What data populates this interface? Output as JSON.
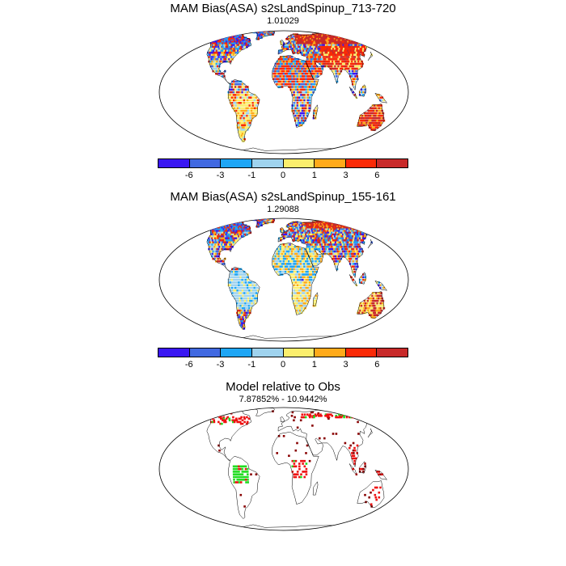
{
  "panels": [
    {
      "title": "MAM Bias(ASA) s2sLandSpinup_713-720",
      "subtitle": "1.01029",
      "legend_colors": [
        "#3a17f2",
        "#4169e1",
        "#1ea6f5",
        "#9fd3ee",
        "#fbee6d",
        "#ffaa1a",
        "#fa2a07",
        "#c82a2a"
      ],
      "legend_labels": [
        "-6",
        "-3",
        "-1",
        "0",
        "1",
        "3",
        "6"
      ]
    },
    {
      "title": "MAM Bias(ASA) s2sLandSpinup_155-161",
      "subtitle": "1.29088",
      "legend_colors": [
        "#3a17f2",
        "#4169e1",
        "#1ea6f5",
        "#9fd3ee",
        "#fbee6d",
        "#ffaa1a",
        "#fa2a07",
        "#c82a2a"
      ],
      "legend_labels": [
        "-6",
        "-3",
        "-1",
        "0",
        "1",
        "3",
        "6"
      ]
    },
    {
      "title": "Model relative to Obs",
      "subtitle": "7.87852% - 10.9442%",
      "highlight_colors": [
        "#22dd22",
        "#ee1111",
        "#880000"
      ]
    }
  ]
}
